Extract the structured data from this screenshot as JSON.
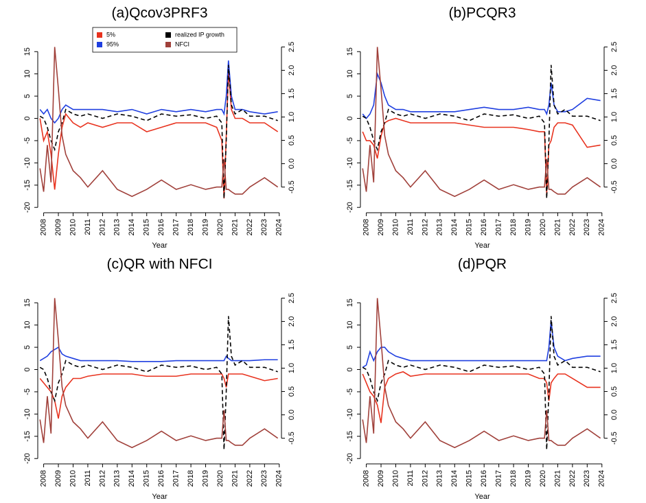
{
  "chart_data": [
    {
      "type": "line",
      "title": "(a)Qcov3PRF3",
      "x_label": "Year",
      "legend": "top",
      "x": [
        2007.75,
        2008,
        2008.25,
        2008.5,
        2008.75,
        2009,
        2009.25,
        2009.5,
        2010,
        2010.5,
        2011,
        2012,
        2013,
        2014,
        2015,
        2016,
        2017,
        2018,
        2019,
        2019.75,
        2020.1,
        2020.25,
        2020.4,
        2020.55,
        2020.75,
        2021,
        2021.5,
        2022,
        2023,
        2023.9
      ],
      "xlim": [
        2007.6,
        2024.15
      ],
      "xticks": [
        2008,
        2009,
        2010,
        2011,
        2012,
        2013,
        2014,
        2015,
        2016,
        2017,
        2018,
        2019,
        2020,
        2021,
        2022,
        2023,
        2024
      ],
      "ylim": [
        -21.2,
        19.2
      ],
      "yticks": [
        -20,
        -15,
        -10,
        -5,
        0,
        5,
        10,
        15
      ],
      "y2lim": [
        -1.05,
        2.8
      ],
      "y2ticks": [
        -0.5,
        {
          "value": 0,
          "label": "0.0"
        },
        0.5,
        {
          "value": 1,
          "label": "1.0"
        },
        1.5,
        {
          "value": 2,
          "label": "2.0"
        },
        2.5
      ],
      "series": [
        {
          "name": "5%",
          "color": "#e8321e",
          "values": [
            0,
            -5,
            -3,
            -8,
            -16,
            -8,
            -2,
            1,
            -1,
            -2,
            -1,
            -2,
            -1,
            -1,
            -3,
            -2,
            -1,
            -1,
            -1,
            -2,
            -5,
            -18,
            -4,
            11,
            2,
            0,
            0,
            -1,
            -1,
            -3
          ]
        },
        {
          "name": "95%",
          "color": "#1f3fe0",
          "values": [
            2,
            1,
            2,
            0,
            -1,
            0,
            2,
            3,
            2,
            2,
            2,
            2,
            1.5,
            2,
            1,
            2,
            1.5,
            2,
            1.5,
            2,
            2,
            1,
            5,
            13,
            5,
            2,
            2,
            1.5,
            1,
            1.5
          ]
        },
        {
          "name": "realized IP growth",
          "color": "#000000",
          "dashed": true,
          "values": [
            0.5,
            0,
            -2,
            -5,
            -7,
            -3,
            -1,
            2,
            1,
            0.5,
            1,
            0,
            1,
            0.5,
            -0.5,
            1,
            0.5,
            0.8,
            0,
            0.5,
            -1,
            -18,
            -5,
            12,
            3,
            1,
            2,
            0.5,
            0.5,
            -0.5
          ]
        },
        {
          "name": "NFCI",
          "color": "#a0403a",
          "axis": "y2",
          "values": [
            -0.1,
            -0.6,
            0.4,
            -0.4,
            2.5,
            1.6,
            0.6,
            0.2,
            -0.15,
            -0.3,
            -0.5,
            -0.15,
            -0.55,
            -0.7,
            -0.55,
            -0.35,
            -0.55,
            -0.45,
            -0.55,
            -0.5,
            -0.5,
            0.1,
            -0.55,
            -0.55,
            -0.6,
            -0.65,
            -0.65,
            -0.5,
            -0.3,
            -0.5
          ]
        }
      ]
    },
    {
      "type": "line",
      "title": "(b)PCQR3",
      "x_label": "Year",
      "x": [
        2007.75,
        2008,
        2008.25,
        2008.5,
        2008.75,
        2009,
        2009.25,
        2009.5,
        2010,
        2010.5,
        2011,
        2012,
        2013,
        2014,
        2015,
        2016,
        2017,
        2018,
        2019,
        2019.75,
        2020.1,
        2020.25,
        2020.4,
        2020.55,
        2020.75,
        2021,
        2021.5,
        2022,
        2023,
        2023.9
      ],
      "xlim": [
        2007.6,
        2024.15
      ],
      "xticks": [
        2008,
        2009,
        2010,
        2011,
        2012,
        2013,
        2014,
        2015,
        2016,
        2017,
        2018,
        2019,
        2020,
        2021,
        2022,
        2023,
        2024
      ],
      "ylim": [
        -21.2,
        19.2
      ],
      "yticks": [
        -20,
        -15,
        -10,
        -5,
        0,
        5,
        10,
        15
      ],
      "y2lim": [
        -1.05,
        2.8
      ],
      "y2ticks": [
        -0.5,
        {
          "value": 0,
          "label": "0.0"
        },
        0.5,
        {
          "value": 1,
          "label": "1.0"
        },
        1.5,
        {
          "value": 2,
          "label": "2.0"
        },
        2.5
      ],
      "series": [
        {
          "name": "5%",
          "color": "#e8321e",
          "values": [
            -3,
            -5,
            -5,
            -6,
            -9,
            -4,
            -1,
            -0.5,
            0,
            -0.5,
            -1,
            -1,
            -1,
            -1,
            -1.5,
            -2,
            -2,
            -2,
            -2.5,
            -3,
            -3,
            -17,
            -6,
            -5,
            -2,
            -1,
            -1,
            -1.5,
            -6.5,
            -6
          ]
        },
        {
          "name": "95%",
          "color": "#1f3fe0",
          "values": [
            1,
            0,
            1,
            3,
            10,
            8,
            5,
            3,
            2,
            2,
            1.5,
            1.5,
            1.5,
            1.5,
            2,
            2.5,
            2,
            2,
            2.5,
            2,
            2,
            1,
            3,
            8,
            3,
            1.5,
            1.5,
            2,
            4.5,
            4
          ]
        },
        {
          "name": "realized IP growth",
          "color": "#000000",
          "dashed": true,
          "values": [
            0.5,
            0,
            -2,
            -5,
            -7,
            -3,
            -1,
            2,
            1,
            0.5,
            1,
            0,
            1,
            0.5,
            -0.5,
            1,
            0.5,
            0.8,
            0,
            0.5,
            -1,
            -18,
            -5,
            12,
            3,
            1,
            2,
            0.5,
            0.5,
            -0.5
          ]
        },
        {
          "name": "NFCI",
          "color": "#a0403a",
          "axis": "y2",
          "values": [
            -0.1,
            -0.6,
            0.4,
            -0.4,
            2.5,
            1.6,
            0.6,
            0.2,
            -0.15,
            -0.3,
            -0.5,
            -0.15,
            -0.55,
            -0.7,
            -0.55,
            -0.35,
            -0.55,
            -0.45,
            -0.55,
            -0.5,
            -0.5,
            0.1,
            -0.55,
            -0.55,
            -0.6,
            -0.65,
            -0.65,
            -0.5,
            -0.3,
            -0.5
          ]
        }
      ]
    },
    {
      "type": "line",
      "title": "(c)QR with NFCI",
      "x_label": "Year",
      "x": [
        2007.75,
        2008,
        2008.25,
        2008.5,
        2008.75,
        2009,
        2009.25,
        2009.5,
        2010,
        2010.5,
        2011,
        2012,
        2013,
        2014,
        2015,
        2016,
        2017,
        2018,
        2019,
        2019.75,
        2020.1,
        2020.25,
        2020.4,
        2020.55,
        2020.75,
        2021,
        2021.5,
        2022,
        2023,
        2023.9
      ],
      "xlim": [
        2007.6,
        2024.15
      ],
      "xticks": [
        2008,
        2009,
        2010,
        2011,
        2012,
        2013,
        2014,
        2015,
        2016,
        2017,
        2018,
        2019,
        2020,
        2021,
        2022,
        2023,
        2024
      ],
      "ylim": [
        -21.2,
        19.2
      ],
      "yticks": [
        -20,
        -15,
        -10,
        -5,
        0,
        5,
        10,
        15
      ],
      "y2lim": [
        -1.05,
        2.8
      ],
      "y2ticks": [
        -0.5,
        {
          "value": 0,
          "label": "0.0"
        },
        0.5,
        {
          "value": 1,
          "label": "1.0"
        },
        1.5,
        {
          "value": 2,
          "label": "2.0"
        },
        2.5
      ],
      "series": [
        {
          "name": "5%",
          "color": "#e8321e",
          "values": [
            -2,
            -3,
            -4,
            -5,
            -7,
            -11,
            -6,
            -4,
            -2,
            -2,
            -1.5,
            -1,
            -1,
            -1,
            -1.5,
            -1.5,
            -1.5,
            -1,
            -1,
            -1,
            -1,
            -2,
            -4,
            -1,
            -1,
            -1,
            -1,
            -1.5,
            -2.5,
            -2
          ]
        },
        {
          "name": "95%",
          "color": "#1f3fe0",
          "values": [
            2,
            2.5,
            3,
            4,
            4.5,
            5,
            3.5,
            3,
            2.5,
            2,
            2,
            2,
            2,
            1.8,
            1.8,
            1.8,
            2,
            2,
            2,
            2,
            2,
            2,
            3,
            2.5,
            2,
            2,
            2,
            2,
            2.2,
            2.2
          ]
        },
        {
          "name": "realized IP growth",
          "color": "#000000",
          "dashed": true,
          "values": [
            0.5,
            0,
            -2,
            -5,
            -7,
            -3,
            -1,
            2,
            1,
            0.5,
            1,
            0,
            1,
            0.5,
            -0.5,
            1,
            0.5,
            0.8,
            0,
            0.5,
            -1,
            -18,
            -5,
            12,
            3,
            1,
            2,
            0.5,
            0.5,
            -0.5
          ]
        },
        {
          "name": "NFCI",
          "color": "#a0403a",
          "axis": "y2",
          "values": [
            -0.1,
            -0.6,
            0.4,
            -0.4,
            2.5,
            1.6,
            0.6,
            0.2,
            -0.15,
            -0.3,
            -0.5,
            -0.15,
            -0.55,
            -0.7,
            -0.55,
            -0.35,
            -0.55,
            -0.45,
            -0.55,
            -0.5,
            -0.5,
            0.1,
            -0.55,
            -0.55,
            -0.6,
            -0.65,
            -0.65,
            -0.5,
            -0.3,
            -0.5
          ]
        }
      ]
    },
    {
      "type": "line",
      "title": "(d)PQR",
      "x_label": "Year",
      "x": [
        2007.75,
        2008,
        2008.25,
        2008.5,
        2008.75,
        2009,
        2009.25,
        2009.5,
        2010,
        2010.5,
        2011,
        2012,
        2013,
        2014,
        2015,
        2016,
        2017,
        2018,
        2019,
        2019.75,
        2020.1,
        2020.25,
        2020.4,
        2020.55,
        2020.75,
        2021,
        2021.5,
        2022,
        2023,
        2023.9
      ],
      "xlim": [
        2007.6,
        2024.15
      ],
      "xticks": [
        2008,
        2009,
        2010,
        2011,
        2012,
        2013,
        2014,
        2015,
        2016,
        2017,
        2018,
        2019,
        2020,
        2021,
        2022,
        2023,
        2024
      ],
      "ylim": [
        -21.2,
        19.2
      ],
      "yticks": [
        -20,
        -15,
        -10,
        -5,
        0,
        5,
        10,
        15
      ],
      "y2lim": [
        -1.05,
        2.8
      ],
      "y2ticks": [
        -0.5,
        {
          "value": 0,
          "label": "0.0"
        },
        0.5,
        {
          "value": 1,
          "label": "1.0"
        },
        1.5,
        {
          "value": 2,
          "label": "2.0"
        },
        2.5
      ],
      "series": [
        {
          "name": "5%",
          "color": "#e8321e",
          "values": [
            -1,
            -3,
            -5,
            -6,
            -8,
            -12,
            -4,
            -2,
            -1,
            -0.5,
            -1.5,
            -1,
            -1,
            -1,
            -1,
            -1,
            -1,
            -1,
            -1,
            -2,
            -2,
            -3,
            -7,
            -3,
            -2,
            -1,
            -1,
            -2,
            -4,
            -4
          ]
        },
        {
          "name": "95%",
          "color": "#1f3fe0",
          "values": [
            0.5,
            1,
            4,
            2,
            4,
            5,
            5,
            4,
            3,
            2.5,
            2,
            2,
            2,
            2,
            2,
            2,
            2,
            2,
            2,
            2,
            2,
            2,
            5,
            11,
            5,
            3,
            2,
            2.5,
            3,
            3
          ]
        },
        {
          "name": "realized IP growth",
          "color": "#000000",
          "dashed": true,
          "values": [
            0.5,
            0,
            -2,
            -5,
            -7,
            -3,
            -1,
            2,
            1,
            0.5,
            1,
            0,
            1,
            0.5,
            -0.5,
            1,
            0.5,
            0.8,
            0,
            0.5,
            -1,
            -18,
            -5,
            12,
            3,
            1,
            2,
            0.5,
            0.5,
            -0.5
          ]
        },
        {
          "name": "NFCI",
          "color": "#a0403a",
          "axis": "y2",
          "values": [
            -0.1,
            -0.6,
            0.4,
            -0.4,
            2.5,
            1.6,
            0.6,
            0.2,
            -0.15,
            -0.3,
            -0.5,
            -0.15,
            -0.55,
            -0.7,
            -0.55,
            -0.35,
            -0.55,
            -0.45,
            -0.55,
            -0.5,
            -0.5,
            0.1,
            -0.55,
            -0.55,
            -0.6,
            -0.65,
            -0.65,
            -0.5,
            -0.3,
            -0.5
          ]
        }
      ]
    }
  ]
}
